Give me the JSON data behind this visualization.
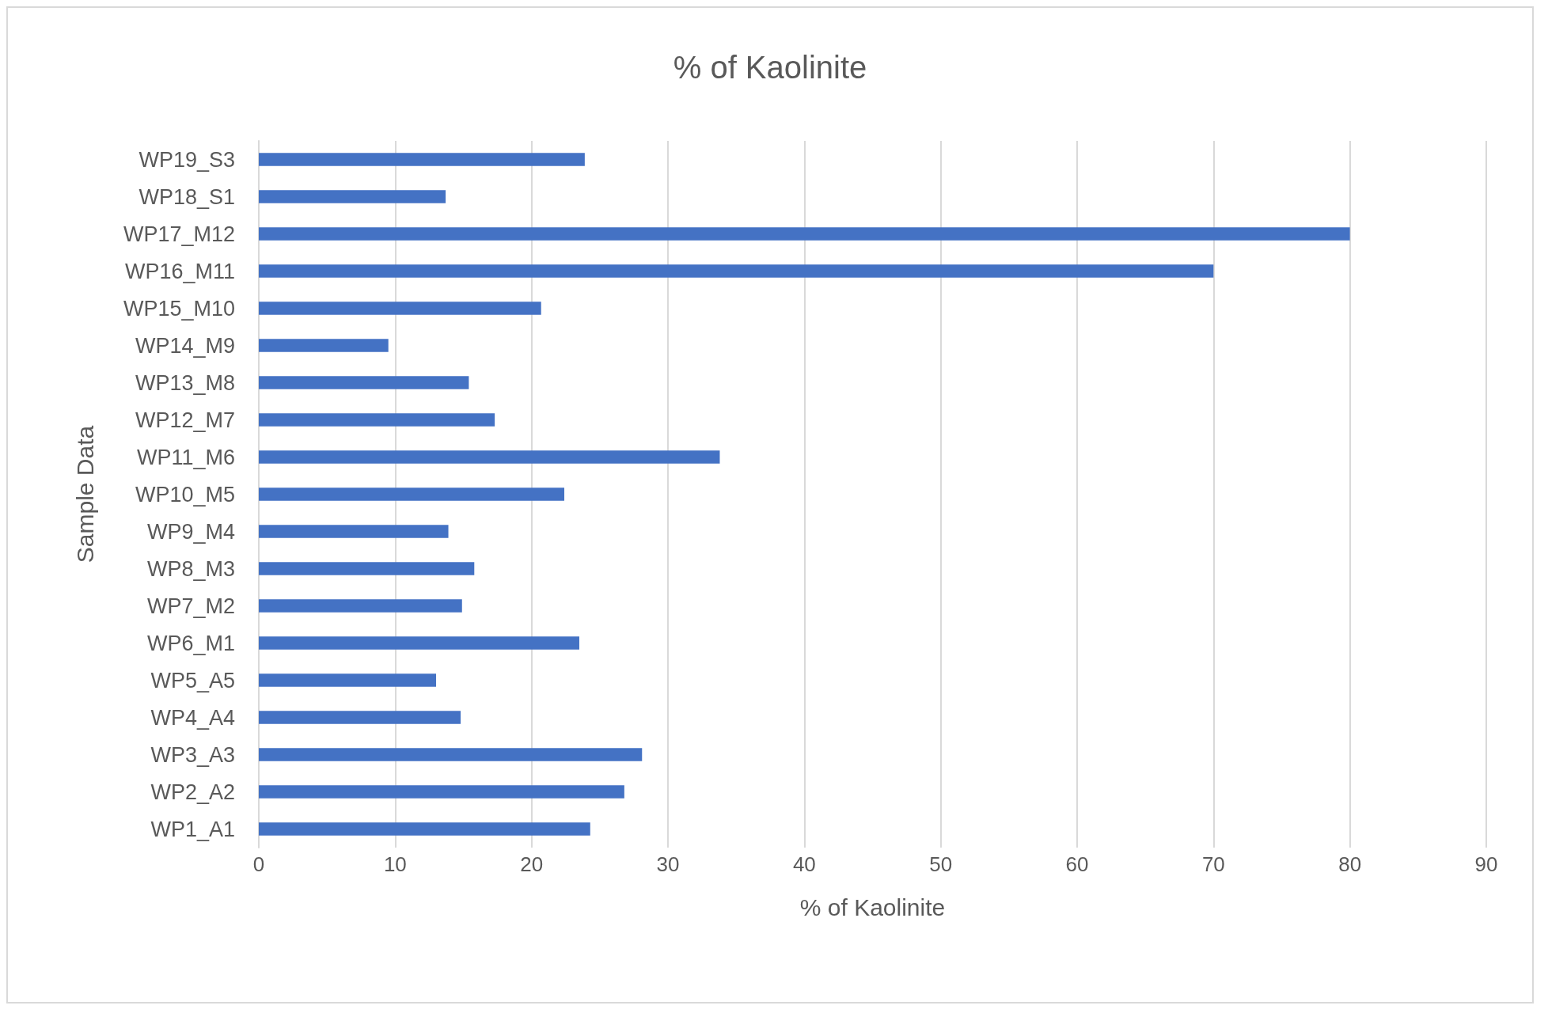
{
  "chart_data": {
    "type": "bar",
    "orientation": "horizontal",
    "title": "% of Kaolinite",
    "xlabel": "% of Kaolinite",
    "ylabel": "Sample Data",
    "categories": [
      "WP19_S3",
      "WP18_S1",
      "WP17_M12",
      "WP16_M11",
      "WP15_M10",
      "WP14_M9",
      "WP13_M8",
      "WP12_M7",
      "WP11_M6",
      "WP10_M5",
      "WP9_M4",
      "WP8_M3",
      "WP7_M2",
      "WP6_M1",
      "WP5_A5",
      "WP4_A4",
      "WP3_A3",
      "WP2_A2",
      "WP1_A1"
    ],
    "values": [
      23.9,
      13.7,
      80,
      70,
      20.7,
      9.5,
      15.4,
      17.3,
      33.8,
      22.4,
      13.9,
      15.8,
      14.9,
      23.5,
      13.0,
      14.8,
      28.1,
      26.8,
      24.3
    ],
    "color": "#4472c4",
    "xlim": [
      0,
      90
    ],
    "xticks": [
      0,
      10,
      20,
      30,
      40,
      50,
      60,
      70,
      80,
      90
    ],
    "grid": "x"
  }
}
